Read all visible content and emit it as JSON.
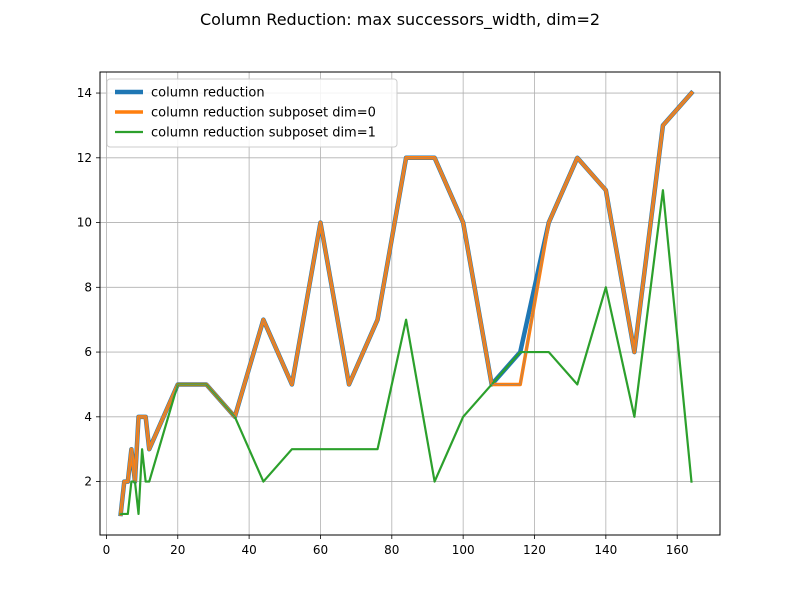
{
  "chart_data": {
    "type": "line",
    "title": "Column Reduction: max successors_width, dim=2",
    "xlabel": "",
    "ylabel": "",
    "xlim": [
      -1.8,
      172.0
    ],
    "ylim": [
      0.35,
      14.65
    ],
    "xticks": [
      0,
      20,
      40,
      60,
      80,
      100,
      120,
      140,
      160
    ],
    "yticks": [
      2,
      4,
      6,
      8,
      10,
      12,
      14
    ],
    "xtick_labels": [
      "0",
      "20",
      "40",
      "60",
      "80",
      "100",
      "120",
      "140",
      "160"
    ],
    "ytick_labels": [
      "2",
      "4",
      "6",
      "8",
      "10",
      "12",
      "14"
    ],
    "grid": true,
    "legend_position": "upper-left",
    "series": [
      {
        "name": "column reduction",
        "color": "#1f77b4",
        "x": [
          4,
          5,
          6,
          7,
          8,
          9,
          10,
          11,
          12,
          20,
          28,
          36,
          44,
          52,
          60,
          68,
          76,
          84,
          92,
          100,
          108,
          116,
          124,
          132,
          140,
          148,
          156,
          164
        ],
        "y": [
          1,
          2,
          2,
          3,
          2,
          4,
          4,
          4,
          3,
          5,
          5,
          4,
          7,
          5,
          10,
          5,
          7,
          12,
          12,
          10,
          5,
          6,
          10,
          12,
          11,
          6,
          13,
          14
        ]
      },
      {
        "name": "column reduction subposet dim=0",
        "color": "#ff7f0e",
        "x": [
          4,
          5,
          6,
          7,
          8,
          9,
          10,
          11,
          12,
          20,
          28,
          36,
          44,
          52,
          60,
          68,
          76,
          84,
          92,
          100,
          108,
          116,
          124,
          132,
          140,
          148,
          156,
          164
        ],
        "y": [
          1,
          2,
          2,
          3,
          2,
          4,
          4,
          4,
          3,
          5,
          5,
          4,
          7,
          5,
          10,
          5,
          7,
          12,
          12,
          10,
          5,
          5,
          10,
          12,
          11,
          6,
          13,
          14
        ]
      },
      {
        "name": "column reduction subposet dim=1",
        "color": "#2ca02c",
        "x": [
          4,
          5,
          6,
          7,
          8,
          9,
          10,
          11,
          12,
          20,
          28,
          36,
          44,
          52,
          60,
          68,
          76,
          84,
          92,
          100,
          108,
          116,
          124,
          132,
          140,
          148,
          156,
          164
        ],
        "y": [
          1,
          1,
          1,
          2,
          2,
          1,
          3,
          2,
          2,
          5,
          5,
          4,
          2,
          3,
          3,
          3,
          3,
          7,
          2,
          4,
          5,
          6,
          6,
          5,
          8,
          4,
          11,
          2
        ]
      }
    ]
  }
}
